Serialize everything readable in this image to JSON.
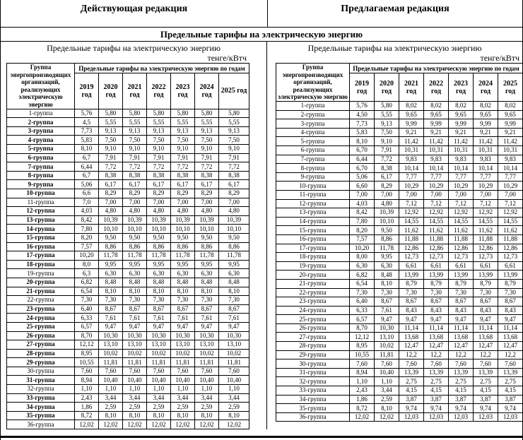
{
  "page": {
    "left_column_title": "Действующая редакция",
    "right_column_title": "Предлагаемая редакция",
    "section_title": "Предельные тарифы на электрическую энергию"
  },
  "panes": [
    {
      "id": "current",
      "table_title": "Предельные тарифы на электрическую энергию",
      "unit_label": "тенге/кВтч",
      "group_column_header": "Группа энергопроизводящих организаций, реализующих электрическую энергию",
      "years_group_header": "Предельные тарифы на электрическую энергию по годам",
      "year_headers": [
        "2019 год",
        "2020 год",
        "2021 год",
        "2022 год",
        "2023 год",
        "2024 год",
        "2025 год"
      ],
      "rows": [
        {
          "group": "1-группа",
          "bold": false,
          "values": [
            "5,76",
            "5,80",
            "5,80",
            "5,80",
            "5,80",
            "5,80",
            "5,80"
          ]
        },
        {
          "group": "2-группа",
          "bold": true,
          "values": [
            "4,5",
            "5,55",
            "5,55",
            "5,55",
            "5,55",
            "5,55",
            "5,55"
          ]
        },
        {
          "group": "3-группа",
          "bold": true,
          "values": [
            "7,73",
            "9,13",
            "9,13",
            "9,13",
            "9,13",
            "9,13",
            "9,13"
          ]
        },
        {
          "group": "4-группа",
          "bold": true,
          "values": [
            "5,83",
            "7,50",
            "7,50",
            "7,50",
            "7,50",
            "7,50",
            "7,50"
          ]
        },
        {
          "group": "5-группа",
          "bold": true,
          "values": [
            "8,10",
            "9,10",
            "9,10",
            "9,10",
            "9,10",
            "9,10",
            "9,10"
          ]
        },
        {
          "group": "6-группа",
          "bold": true,
          "values": [
            "6,7",
            "7,91",
            "7,91",
            "7,91",
            "7,91",
            "7,91",
            "7,91"
          ]
        },
        {
          "group": "7-группа",
          "bold": true,
          "values": [
            "6,44",
            "7,72",
            "7,72",
            "7,72",
            "7,72",
            "7,72",
            "7,72"
          ]
        },
        {
          "group": "8-группа",
          "bold": true,
          "values": [
            "6,7",
            "8,38",
            "8,38",
            "8,38",
            "8,38",
            "8,38",
            "8,38"
          ]
        },
        {
          "group": "9-группа",
          "bold": true,
          "values": [
            "5,06",
            "6,17",
            "6,17",
            "6,17",
            "6,17",
            "6,17",
            "6,17"
          ]
        },
        {
          "group": "10-группа",
          "bold": true,
          "values": [
            "6,6",
            "8,29",
            "8,29",
            "8,29",
            "8,29",
            "8,29",
            "8,29"
          ]
        },
        {
          "group": "11-группа",
          "bold": false,
          "values": [
            "7,0",
            "7,00",
            "7,00",
            "7,00",
            "7,00",
            "7,00",
            "7,00"
          ]
        },
        {
          "group": "12-группа",
          "bold": true,
          "values": [
            "4,03",
            "4,80",
            "4,80",
            "4,80",
            "4,80",
            "4,80",
            "4,80"
          ]
        },
        {
          "group": "13-группа",
          "bold": true,
          "values": [
            "8,42",
            "10,39",
            "10,39",
            "10,39",
            "10,39",
            "10,39",
            "10,39"
          ]
        },
        {
          "group": "14-группа",
          "bold": true,
          "values": [
            "7,80",
            "10,10",
            "10,10",
            "10,10",
            "10,10",
            "10,10",
            "10,10"
          ]
        },
        {
          "group": "15-группа",
          "bold": true,
          "values": [
            "8,20",
            "9,50",
            "9,50",
            "9,50",
            "9,50",
            "9,50",
            "9,50"
          ]
        },
        {
          "group": "16-группа",
          "bold": true,
          "values": [
            "7,57",
            "8,86",
            "8,86",
            "8,86",
            "8,86",
            "8,86",
            "8,86"
          ]
        },
        {
          "group": "17-группа",
          "bold": true,
          "values": [
            "10,20",
            "11,78",
            "11,78",
            "11,78",
            "11,78",
            "11,78",
            "11,78"
          ]
        },
        {
          "group": "18-группа",
          "bold": true,
          "values": [
            "8,0",
            "9,95",
            "9,95",
            "9,95",
            "9,95",
            "9,95",
            "9,95"
          ]
        },
        {
          "group": "19-группа",
          "bold": false,
          "values": [
            "6,3",
            "6,30",
            "6,30",
            "6,30",
            "6,30",
            "6,30",
            "6,30"
          ]
        },
        {
          "group": "20-группа",
          "bold": true,
          "values": [
            "6,82",
            "8,48",
            "8,48",
            "8,48",
            "8,48",
            "8,48",
            "8,48"
          ]
        },
        {
          "group": "21-группа",
          "bold": true,
          "values": [
            "6,54",
            "8,10",
            "8,10",
            "8,10",
            "8,10",
            "8,10",
            "8,10"
          ]
        },
        {
          "group": "22-группа",
          "bold": false,
          "values": [
            "7,30",
            "7,30",
            "7,30",
            "7,30",
            "7,30",
            "7,30",
            "7,30"
          ]
        },
        {
          "group": "23-группа",
          "bold": true,
          "values": [
            "6,40",
            "8,67",
            "8,67",
            "8,67",
            "8,67",
            "8,67",
            "8,67"
          ]
        },
        {
          "group": "24-группа",
          "bold": true,
          "values": [
            "6,33",
            "7,61",
            "7,61",
            "7,61",
            "7,61",
            "7,61",
            "7,61"
          ]
        },
        {
          "group": "25-группа",
          "bold": true,
          "values": [
            "6,57",
            "9,47",
            "9,47",
            "9,47",
            "9,47",
            "9,47",
            "9,47"
          ]
        },
        {
          "group": "26-группа",
          "bold": true,
          "values": [
            "8,70",
            "10,30",
            "10,30",
            "10,30",
            "10,30",
            "10,30",
            "10,30"
          ]
        },
        {
          "group": "27-группа",
          "bold": true,
          "values": [
            "12,12",
            "13,10",
            "13,10",
            "13,10",
            "13,10",
            "13,10",
            "13,10"
          ]
        },
        {
          "group": "28-группа",
          "bold": true,
          "values": [
            "8,95",
            "10,02",
            "10,02",
            "10,02",
            "10,02",
            "10,02",
            "10,02"
          ]
        },
        {
          "group": "29-группа",
          "bold": true,
          "values": [
            "10,55",
            "11,81",
            "11,81",
            "11,81",
            "11,81",
            "11,81",
            "11,81"
          ]
        },
        {
          "group": "30-группа",
          "bold": false,
          "values": [
            "7,60",
            "7,60",
            "7,60",
            "7,60",
            "7,60",
            "7,60",
            "7,60"
          ]
        },
        {
          "group": "31-группа",
          "bold": true,
          "values": [
            "8,94",
            "10,40",
            "10,40",
            "10,40",
            "10,40",
            "10,40",
            "10,40"
          ]
        },
        {
          "group": "32-группа",
          "bold": false,
          "values": [
            "1,10",
            "1,10",
            "1,10",
            "1,10",
            "1,10",
            "1,10",
            "1,10"
          ]
        },
        {
          "group": "33-группа",
          "bold": true,
          "values": [
            "2,43",
            "3,44",
            "3,44",
            "3,44",
            "3,44",
            "3,44",
            "3,44"
          ]
        },
        {
          "group": "34-группа",
          "bold": true,
          "values": [
            "1,86",
            "2,59",
            "2,59",
            "2,59",
            "2,59",
            "2,59",
            "2,59"
          ]
        },
        {
          "group": "35-группа",
          "bold": true,
          "values": [
            "8,72",
            "8,10",
            "8,10",
            "8,10",
            "8,10",
            "8,10",
            "8,10"
          ]
        },
        {
          "group": "36-группа",
          "bold": false,
          "values": [
            "12,02",
            "12,02",
            "12,02",
            "12,02",
            "12,02",
            "12,02",
            "12,02"
          ]
        }
      ]
    },
    {
      "id": "proposed",
      "table_title": "Предельные тарифы на электрическую энергию",
      "unit_label": "тенге/кВтч",
      "group_column_header": "Группа энергопроизводящих организаций, реализующих электрическую энергию",
      "years_group_header": "Предельные тарифы на электрическую энергию по годам",
      "year_headers": [
        "2019 год",
        "2020 год",
        "2021 год",
        "2022 год",
        "2023 год",
        "2024 год",
        "2025 год"
      ],
      "rows": [
        {
          "group": "1-группа",
          "bold": false,
          "values": [
            "5,76",
            "5,80",
            "8,02",
            "8,02",
            "8,02",
            "8,02",
            "8,02"
          ]
        },
        {
          "group": "2-группа",
          "bold": false,
          "values": [
            "4,50",
            "5,55",
            "9,65",
            "9,65",
            "9,65",
            "9,65",
            "9,65"
          ]
        },
        {
          "group": "3-группа",
          "bold": false,
          "values": [
            "7,73",
            "9,13",
            "9,99",
            "9,99",
            "9,99",
            "9,99",
            "9,99"
          ]
        },
        {
          "group": "4-группа",
          "bold": false,
          "values": [
            "5,83",
            "7,50",
            "9,21",
            "9,21",
            "9,21",
            "9,21",
            "9,21"
          ]
        },
        {
          "group": "5-группа",
          "bold": false,
          "values": [
            "8,10",
            "9,10",
            "11,42",
            "11,42",
            "11,42",
            "11,42",
            "11,42"
          ]
        },
        {
          "group": "6-группа",
          "bold": false,
          "values": [
            "6,70",
            "7,91",
            "10,31",
            "10,31",
            "10,31",
            "10,31",
            "10,31"
          ]
        },
        {
          "group": "7-группа",
          "bold": false,
          "values": [
            "6,44",
            "7,72",
            "9,83",
            "9,83",
            "9,83",
            "9,83",
            "9,83"
          ]
        },
        {
          "group": "8-группа",
          "bold": false,
          "values": [
            "6,70",
            "8,38",
            "10,14",
            "10,14",
            "10,14",
            "10,14",
            "10,14"
          ]
        },
        {
          "group": "9-группа",
          "bold": false,
          "values": [
            "5,06",
            "6,17",
            "7,77",
            "7,77",
            "7,77",
            "7,77",
            "7,77"
          ]
        },
        {
          "group": "10-группа",
          "bold": false,
          "values": [
            "6,60",
            "8,29",
            "10,29",
            "10,29",
            "10,29",
            "10,29",
            "10,29"
          ]
        },
        {
          "group": "11-группа",
          "bold": false,
          "values": [
            "7,00",
            "7,00",
            "7,00",
            "7,00",
            "7,00",
            "7,00",
            "7,00"
          ]
        },
        {
          "group": "12-группа",
          "bold": false,
          "values": [
            "4,03",
            "4,80",
            "7,12",
            "7,12",
            "7,12",
            "7,12",
            "7,12"
          ]
        },
        {
          "group": "13-группа",
          "bold": false,
          "values": [
            "8,42",
            "10,39",
            "12,92",
            "12,92",
            "12,92",
            "12,92",
            "12,92"
          ]
        },
        {
          "group": "14-группа",
          "bold": false,
          "values": [
            "7,80",
            "10,10",
            "14,55",
            "14,55",
            "14,55",
            "14,55",
            "14,55"
          ]
        },
        {
          "group": "15-группа",
          "bold": false,
          "values": [
            "8,20",
            "9,50",
            "11,62",
            "11,62",
            "11,62",
            "11,62",
            "11,62"
          ]
        },
        {
          "group": "16-группа",
          "bold": false,
          "values": [
            "7,57",
            "8,86",
            "11,88",
            "11,88",
            "11,88",
            "11,88",
            "11,88"
          ]
        },
        {
          "group": "17-группа",
          "bold": false,
          "values": [
            "10,20",
            "11,78",
            "12,86",
            "12,86",
            "12,86",
            "12,86",
            "12,86"
          ]
        },
        {
          "group": "18-группа",
          "bold": false,
          "values": [
            "8,00",
            "9,95",
            "12,73",
            "12,73",
            "12,73",
            "12,73",
            "12,73"
          ]
        },
        {
          "group": "19-группа",
          "bold": false,
          "values": [
            "6,30",
            "6,30",
            "6,61",
            "6,61",
            "6,61",
            "6,61",
            "6,61"
          ]
        },
        {
          "group": "20-группа",
          "bold": false,
          "values": [
            "6,82",
            "8,48",
            "13,99",
            "13,99",
            "13,99",
            "13,99",
            "13,99"
          ]
        },
        {
          "group": "21-группа",
          "bold": false,
          "values": [
            "6,54",
            "8,10",
            "8,79",
            "8,79",
            "8,79",
            "8,79",
            "8,79"
          ]
        },
        {
          "group": "22-группа",
          "bold": false,
          "values": [
            "7,30",
            "7,30",
            "7,30",
            "7,30",
            "7,30",
            "7,30",
            "7,30"
          ]
        },
        {
          "group": "23-группа",
          "bold": false,
          "values": [
            "6,40",
            "8,67",
            "8,67",
            "8,67",
            "8,67",
            "8,67",
            "8,67"
          ]
        },
        {
          "group": "24-группа",
          "bold": false,
          "values": [
            "6,33",
            "7,61",
            "8,43",
            "8,43",
            "8,43",
            "8,43",
            "8,43"
          ]
        },
        {
          "group": "25-группа",
          "bold": false,
          "values": [
            "6,57",
            "9,47",
            "9,47",
            "9,47",
            "9,47",
            "9,47",
            "9,47"
          ]
        },
        {
          "group": "26-группа",
          "bold": false,
          "values": [
            "8,70",
            "10,30",
            "11,14",
            "11,14",
            "11,14",
            "11,14",
            "11,14"
          ]
        },
        {
          "group": "27-группа",
          "bold": false,
          "values": [
            "12,12",
            "13,10",
            "13,68",
            "13,68",
            "13,68",
            "13,68",
            "13,68"
          ]
        },
        {
          "group": "28-группа",
          "bold": false,
          "values": [
            "8,95",
            "10,02",
            "12,47",
            "12,47",
            "12,47",
            "12,47",
            "12,47"
          ]
        },
        {
          "group": "29-группа",
          "bold": false,
          "values": [
            "10,55",
            "11,81",
            "12,2",
            "12,2",
            "12,2",
            "12,2",
            "12,2"
          ]
        },
        {
          "group": "30-группа",
          "bold": false,
          "values": [
            "7,60",
            "7,60",
            "7,60",
            "7,60",
            "7,60",
            "7,60",
            "7,60"
          ]
        },
        {
          "group": "31-группа",
          "bold": false,
          "values": [
            "8,94",
            "10,40",
            "13,39",
            "13,39",
            "13,39",
            "13,39",
            "13,39"
          ]
        },
        {
          "group": "32-группа",
          "bold": false,
          "values": [
            "1,10",
            "1,10",
            "2,75",
            "2,75",
            "2,75",
            "2,75",
            "2,75"
          ]
        },
        {
          "group": "33-группа",
          "bold": false,
          "values": [
            "2,43",
            "3,44",
            "4,15",
            "4,15",
            "4,15",
            "4,15",
            "4,15"
          ]
        },
        {
          "group": "34-группа",
          "bold": false,
          "values": [
            "1,86",
            "2,59",
            "3,87",
            "3,87",
            "3,87",
            "3,87",
            "3,87"
          ]
        },
        {
          "group": "35-группа",
          "bold": false,
          "values": [
            "8,72",
            "8,10",
            "9,74",
            "9,74",
            "9,74",
            "9,74",
            "9,74"
          ]
        },
        {
          "group": "36-группа",
          "bold": false,
          "values": [
            "12,02",
            "12,02",
            "12,03",
            "12,03",
            "12,03",
            "12,03",
            "12,03"
          ]
        }
      ]
    }
  ]
}
